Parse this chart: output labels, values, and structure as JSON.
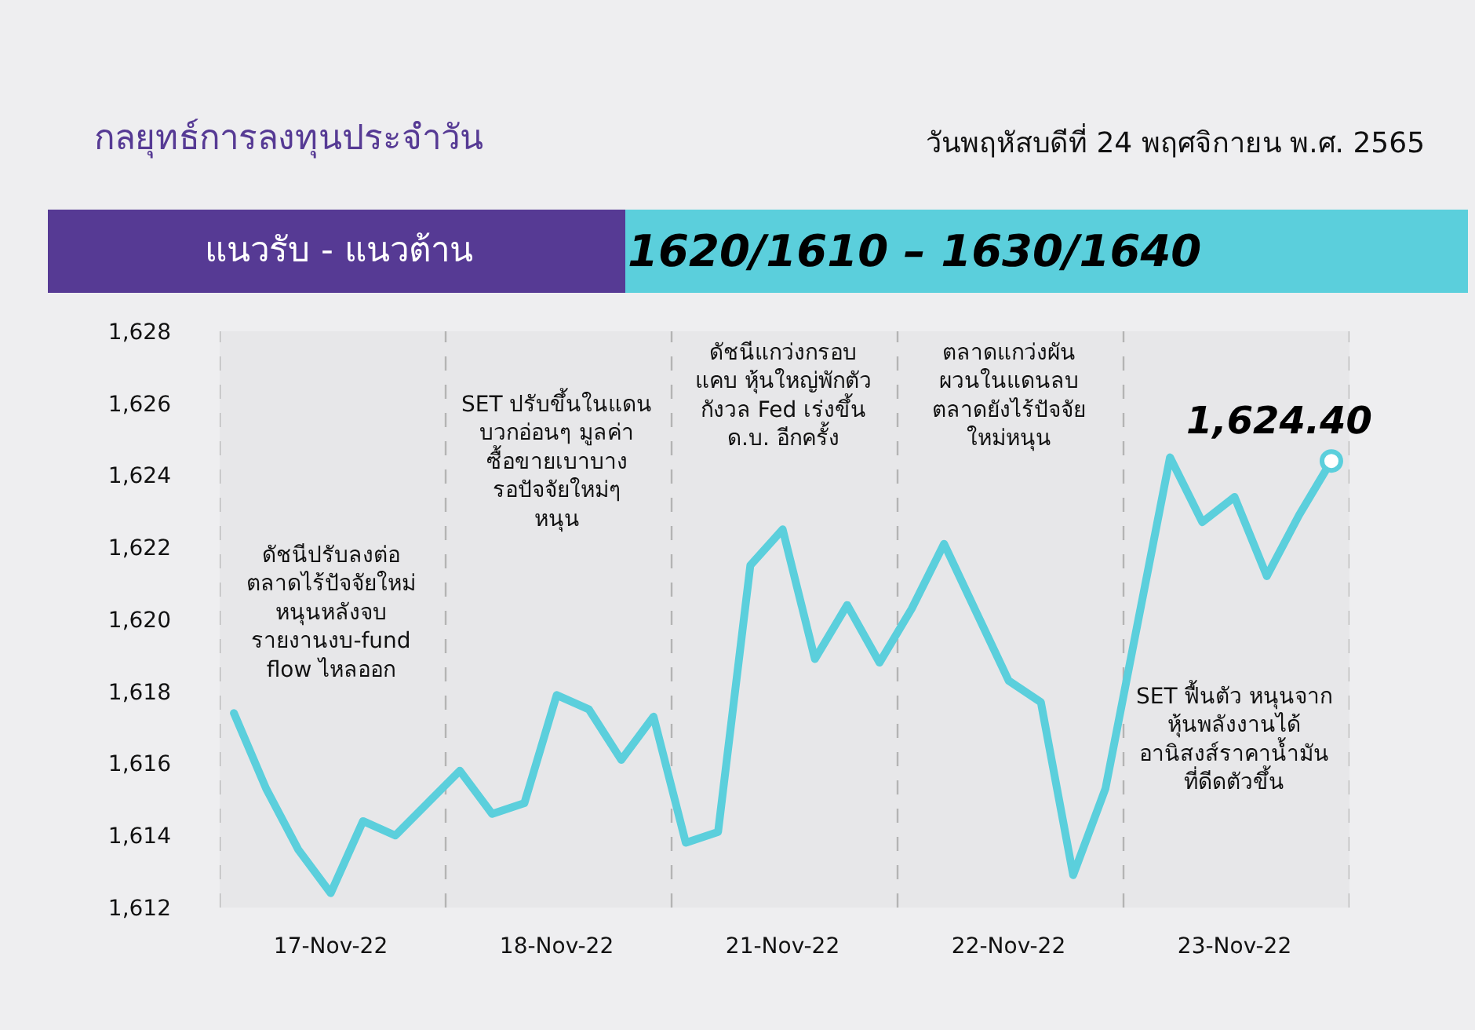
{
  "chart_data": {
    "type": "line",
    "title": "กลยุทธ์การลงทุนประจำวัน",
    "subtitle": "วันพฤหัสบดีที่ 24 พฤศจิกายน พ.ศ. 2565",
    "annotations": [
      "แนวรับ - แนวต้าน",
      "1620/1610 – 1630/1640",
      "ดัชนีปรับลงต่อ\nตลาดไร้ปัจจัยใหม่\nหนุนหลังจบ\nรายงานงบ-fund\nflow ไหลออก",
      "SET ปรับขึ้นในแดน\nบวกอ่อนๆ มูลค่า\nซื้อขายเบาบาง\nรอปัจจัยใหม่ๆ\nหนุน",
      "ดัชนีแกว่งกรอบ\nแคบ หุ้นใหญ่พักตัว\nกังวล Fed เร่งขึ้น\nด.บ. อีกครั้ง",
      "ตลาดแกว่งผัน\nผวนในแดนลบ\nตลาดยังไร้ปัจจัย\nใหม่หนุน",
      "SET ฟื้นตัว หนุนจาก\nหุ้นพลังงานได้\nอานิสงส์ราคาน้ำมัน\nที่ดีดตัวขึ้น"
    ],
    "categories": [
      null,
      null,
      null,
      "17-Nov-22",
      null,
      null,
      null,
      null,
      null,
      null,
      "18-Nov-22",
      null,
      null,
      null,
      null,
      null,
      null,
      "21-Nov-22",
      null,
      null,
      null,
      null,
      null,
      null,
      "22-Nov-22",
      null,
      null,
      null,
      null,
      null,
      null,
      "23-Nov-22",
      null,
      null,
      null
    ],
    "series": [
      {
        "color": "#5bcfdc",
        "values": [
          1617.4,
          1615.3,
          1613.6,
          1612.4,
          1614.4,
          1614.0,
          1614.9,
          1615.8,
          1614.6,
          1614.9,
          1617.9,
          1617.5,
          1616.1,
          1617.3,
          1613.8,
          1614.1,
          1621.5,
          1622.5,
          1618.9,
          1620.4,
          1618.8,
          1620.3,
          1622.1,
          1620.2,
          1618.3,
          1617.7,
          1612.9,
          1615.3,
          1619.9,
          1624.5,
          1622.7,
          1623.4,
          1621.2,
          1622.9,
          1624.4
        ],
        "value_labels": [
          null,
          null,
          null,
          null,
          null,
          null,
          null,
          null,
          null,
          null,
          null,
          null,
          null,
          null,
          null,
          null,
          null,
          null,
          null,
          null,
          null,
          null,
          null,
          null,
          null,
          null,
          null,
          null,
          null,
          null,
          null,
          null,
          null,
          null,
          "1,624.40"
        ]
      }
    ],
    "ylim": [
      1612,
      1628
    ],
    "yticks": [
      {
        "value": 1612,
        "label": "1,612"
      },
      {
        "value": 1614,
        "label": "1,614"
      },
      {
        "value": 1616,
        "label": "1,616"
      },
      {
        "value": 1618,
        "label": "1,618"
      },
      {
        "value": 1620,
        "label": "1,620"
      },
      {
        "value": 1622,
        "label": "1,622"
      },
      {
        "value": 1624,
        "label": "1,624"
      },
      {
        "value": 1626,
        "label": "1,626"
      },
      {
        "value": 1628,
        "label": "1,628"
      }
    ]
  }
}
